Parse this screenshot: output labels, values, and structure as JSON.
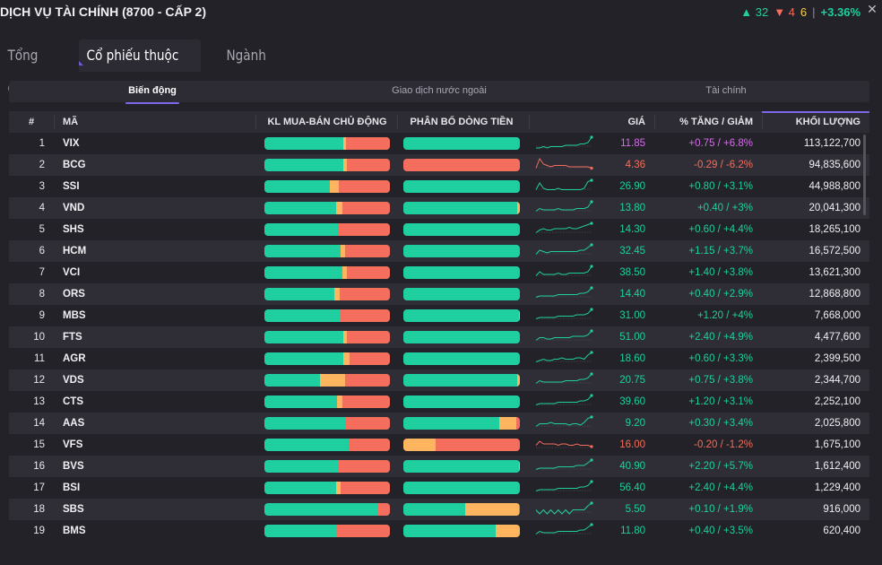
{
  "header": {
    "title": "DỊCH VỤ TÀI CHÍNH (8700 - CẤP 2)",
    "up_count": "▲ 32",
    "down_count": "▼ 4",
    "flat_count": "6",
    "separator": "|",
    "change_pct": "+3.36%",
    "close_symbol": "✕"
  },
  "tabs": [
    {
      "label": "Tổng quan",
      "active": false
    },
    {
      "label": "Cổ phiếu thuộc ngành",
      "active": true
    },
    {
      "label": "Ngành con",
      "active": false
    }
  ],
  "subtabs": [
    {
      "label": "Biến động",
      "active": true
    },
    {
      "label": "Giao dịch nước ngoài",
      "active": false
    },
    {
      "label": "Tài chính",
      "active": false
    }
  ],
  "columns": {
    "idx": "#",
    "symbol": "MÃ",
    "buysell": "KL MUA-BÁN CHỦ ĐỘNG",
    "flow": "PHÂN BỔ DÒNG TIỀN",
    "price": "GIÁ",
    "change": "% TĂNG / GIẢM",
    "volume": "KHỐI LƯỢNG"
  },
  "colors": {
    "up": "#1fcf9f",
    "down": "#f56d5c",
    "neutral": "#fdb55f",
    "ceiling": "#d36ee8"
  },
  "rows": [
    {
      "idx": "1",
      "symbol": "VIX",
      "price": "11.85",
      "change": "+0.75 / +6.8%",
      "volume": "113,122,700",
      "trend": "ceil",
      "buysell": [
        0.63,
        0.02,
        0.35
      ],
      "flow": [
        1.0,
        0.0,
        0.0
      ],
      "spark": [
        2,
        2,
        3,
        2,
        3,
        3,
        3,
        3,
        4,
        4,
        4,
        4,
        5,
        5,
        6,
        10
      ]
    },
    {
      "idx": "2",
      "symbol": "BCG",
      "price": "4.36",
      "change": "-0.29 / -6.2%",
      "volume": "94,835,600",
      "trend": "down",
      "buysell": [
        0.63,
        0.03,
        0.34
      ],
      "flow": [
        0.0,
        0.0,
        1.0
      ],
      "spark": [
        3,
        10,
        6,
        5,
        4,
        5,
        5,
        5,
        5,
        4,
        4,
        4,
        4,
        4,
        4,
        3
      ]
    },
    {
      "idx": "3",
      "symbol": "SSI",
      "price": "26.90",
      "change": "+0.80 / +3.1%",
      "volume": "44,988,800",
      "trend": "up",
      "buysell": [
        0.52,
        0.07,
        0.41
      ],
      "flow": [
        1.0,
        0.0,
        0.0
      ],
      "spark": [
        3,
        8,
        4,
        3,
        3,
        3,
        4,
        3,
        3,
        3,
        3,
        3,
        3,
        4,
        9,
        10
      ]
    },
    {
      "idx": "4",
      "symbol": "VND",
      "price": "13.80",
      "change": "+0.40 / +3%",
      "volume": "20,041,300",
      "trend": "up",
      "buysell": [
        0.57,
        0.05,
        0.38
      ],
      "flow": [
        0.98,
        0.02,
        0.0
      ],
      "spark": [
        3,
        5,
        4,
        4,
        4,
        4,
        5,
        4,
        4,
        4,
        4,
        5,
        5,
        5,
        6,
        10
      ]
    },
    {
      "idx": "5",
      "symbol": "SHS",
      "price": "14.30",
      "change": "+0.60 / +4.4%",
      "volume": "18,265,100",
      "trend": "up",
      "buysell": [
        0.59,
        0.0,
        0.41
      ],
      "flow": [
        1.0,
        0.0,
        0.0
      ],
      "spark": [
        3,
        5,
        6,
        5,
        5,
        6,
        6,
        6,
        6,
        7,
        6,
        6,
        7,
        8,
        9,
        10
      ]
    },
    {
      "idx": "6",
      "symbol": "HCM",
      "price": "32.45",
      "change": "+1.15 / +3.7%",
      "volume": "16,572,500",
      "trend": "up",
      "buysell": [
        0.61,
        0.03,
        0.36
      ],
      "flow": [
        1.0,
        0.0,
        0.0
      ],
      "spark": [
        3,
        6,
        5,
        4,
        5,
        5,
        5,
        5,
        5,
        5,
        5,
        5,
        6,
        6,
        8,
        10
      ]
    },
    {
      "idx": "7",
      "symbol": "VCI",
      "price": "38.50",
      "change": "+1.40 / +3.8%",
      "volume": "13,621,300",
      "trend": "up",
      "buysell": [
        0.62,
        0.04,
        0.34
      ],
      "flow": [
        1.0,
        0.0,
        0.0
      ],
      "spark": [
        3,
        6,
        4,
        4,
        4,
        4,
        5,
        4,
        4,
        5,
        5,
        5,
        5,
        5,
        6,
        10
      ]
    },
    {
      "idx": "8",
      "symbol": "ORS",
      "price": "14.40",
      "change": "+0.40 / +2.9%",
      "volume": "12,868,800",
      "trend": "up",
      "buysell": [
        0.56,
        0.04,
        0.4
      ],
      "flow": [
        1.0,
        0.0,
        0.0
      ],
      "spark": [
        3,
        4,
        4,
        4,
        4,
        4,
        5,
        5,
        5,
        5,
        5,
        5,
        6,
        6,
        7,
        10
      ]
    },
    {
      "idx": "9",
      "symbol": "MBS",
      "price": "31.00",
      "change": "+1.20 / +4%",
      "volume": "7,668,000",
      "trend": "up",
      "buysell": [
        0.6,
        0.0,
        0.4
      ],
      "flow": [
        0.99,
        0.01,
        0.0
      ],
      "spark": [
        3,
        4,
        4,
        4,
        4,
        4,
        5,
        5,
        5,
        5,
        5,
        6,
        6,
        6,
        7,
        10
      ]
    },
    {
      "idx": "10",
      "symbol": "FTS",
      "price": "51.00",
      "change": "+2.40 / +4.9%",
      "volume": "4,477,600",
      "trend": "up",
      "buysell": [
        0.63,
        0.03,
        0.34
      ],
      "flow": [
        1.0,
        0.0,
        0.0
      ],
      "spark": [
        3,
        5,
        5,
        4,
        4,
        5,
        5,
        5,
        5,
        5,
        6,
        6,
        6,
        6,
        7,
        10
      ]
    },
    {
      "idx": "11",
      "symbol": "AGR",
      "price": "18.60",
      "change": "+0.60 / +3.3%",
      "volume": "2,399,500",
      "trend": "up",
      "buysell": [
        0.63,
        0.05,
        0.32
      ],
      "flow": [
        1.0,
        0.0,
        0.0
      ],
      "spark": [
        3,
        4,
        5,
        4,
        4,
        5,
        5,
        6,
        5,
        5,
        5,
        6,
        6,
        5,
        8,
        10
      ]
    },
    {
      "idx": "12",
      "symbol": "VDS",
      "price": "20.75",
      "change": "+0.75 / +3.8%",
      "volume": "2,344,700",
      "trend": "up",
      "buysell": [
        0.44,
        0.2,
        0.36
      ],
      "flow": [
        0.98,
        0.02,
        0.0
      ],
      "spark": [
        3,
        5,
        4,
        4,
        4,
        4,
        4,
        4,
        5,
        5,
        5,
        5,
        6,
        6,
        7,
        10
      ]
    },
    {
      "idx": "13",
      "symbol": "CTS",
      "price": "39.60",
      "change": "+1.20 / +3.1%",
      "volume": "2,252,100",
      "trend": "up",
      "buysell": [
        0.58,
        0.04,
        0.38
      ],
      "flow": [
        1.0,
        0.0,
        0.0
      ],
      "spark": [
        3,
        4,
        4,
        4,
        4,
        4,
        5,
        5,
        5,
        5,
        5,
        5,
        6,
        6,
        7,
        10
      ]
    },
    {
      "idx": "14",
      "symbol": "AAS",
      "price": "9.20",
      "change": "+0.30 / +3.4%",
      "volume": "2,025,800",
      "trend": "up",
      "buysell": [
        0.65,
        0.0,
        0.35
      ],
      "flow": [
        0.82,
        0.15,
        0.03
      ],
      "spark": [
        3,
        5,
        5,
        5,
        6,
        5,
        5,
        5,
        5,
        4,
        5,
        5,
        4,
        6,
        9,
        10
      ]
    },
    {
      "idx": "15",
      "symbol": "VFS",
      "price": "16.00",
      "change": "-0.20 / -1.2%",
      "volume": "1,675,100",
      "trend": "down",
      "buysell": [
        0.67,
        0.0,
        0.33
      ],
      "flow": [
        0.0,
        0.28,
        0.72
      ],
      "spark": [
        5,
        8,
        6,
        6,
        6,
        6,
        5,
        6,
        6,
        5,
        5,
        6,
        5,
        5,
        5,
        4
      ]
    },
    {
      "idx": "16",
      "symbol": "BVS",
      "price": "40.90",
      "change": "+2.20 / +5.7%",
      "volume": "1,612,400",
      "trend": "up",
      "buysell": [
        0.59,
        0.0,
        0.41
      ],
      "flow": [
        0.99,
        0.01,
        0.0
      ],
      "spark": [
        3,
        4,
        4,
        4,
        4,
        4,
        5,
        5,
        5,
        5,
        5,
        6,
        6,
        6,
        8,
        10
      ]
    },
    {
      "idx": "17",
      "symbol": "BSI",
      "price": "56.40",
      "change": "+2.40 / +4.4%",
      "volume": "1,229,400",
      "trend": "up",
      "buysell": [
        0.57,
        0.04,
        0.39
      ],
      "flow": [
        1.0,
        0.0,
        0.0
      ],
      "spark": [
        3,
        4,
        4,
        4,
        4,
        4,
        5,
        5,
        5,
        5,
        5,
        5,
        6,
        6,
        7,
        10
      ]
    },
    {
      "idx": "18",
      "symbol": "SBS",
      "price": "5.50",
      "change": "+0.10 / +1.9%",
      "volume": "916,000",
      "trend": "up",
      "buysell": [
        0.91,
        0.0,
        0.09
      ],
      "flow": [
        0.53,
        0.46,
        0.01
      ],
      "spark": [
        5,
        2,
        5,
        2,
        5,
        2,
        5,
        2,
        5,
        2,
        5,
        5,
        5,
        5,
        8,
        10
      ]
    },
    {
      "idx": "19",
      "symbol": "BMS",
      "price": "11.80",
      "change": "+0.40 / +3.5%",
      "volume": "620,400",
      "trend": "up",
      "buysell": [
        0.58,
        0.0,
        0.42
      ],
      "flow": [
        0.79,
        0.21,
        0.0
      ],
      "spark": [
        3,
        5,
        4,
        4,
        4,
        4,
        5,
        5,
        5,
        5,
        5,
        5,
        6,
        6,
        8,
        10
      ]
    }
  ]
}
